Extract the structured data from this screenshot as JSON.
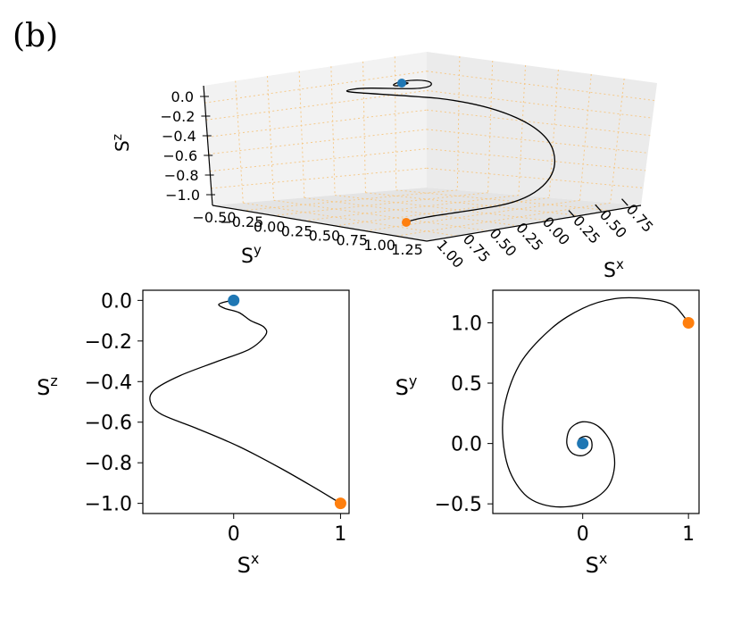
{
  "figure": {
    "panel_label": "(b)"
  },
  "colors": {
    "start": "#1f77b4",
    "end": "#ff7f0e",
    "curve": "#000000",
    "grid": "#f5c98a",
    "pane": "#f0f0f0"
  },
  "chart_data": [
    {
      "type": "line",
      "kind": "3d",
      "xlabel": "S",
      "xlabel_sup": "x",
      "ylabel": "S",
      "ylabel_sup": "y",
      "zlabel": "S",
      "zlabel_sup": "z",
      "x_ticks": [
        "−0.75",
        "−0.50",
        "−0.25",
        "0.00",
        "0.25",
        "0.50",
        "0.75",
        "1.00"
      ],
      "y_ticks": [
        "−0.50",
        "−0.25",
        "0.00",
        "0.25",
        "0.50",
        "0.75",
        "1.00",
        "1.25"
      ],
      "z_ticks": [
        "0.0",
        "−0.2",
        "−0.4",
        "−0.6",
        "−0.8",
        "−1.0"
      ],
      "grid": true,
      "start_point": {
        "x": 0,
        "y": 0,
        "z": 0
      },
      "end_point": {
        "x": 1,
        "y": 1,
        "z": -1
      }
    },
    {
      "type": "line",
      "kind": "xz-projection",
      "xlabel": "S",
      "xlabel_sup": "x",
      "ylabel": "S",
      "ylabel_sup": "z",
      "xlim": [
        -0.85,
        1.08
      ],
      "ylim": [
        -1.05,
        0.05
      ],
      "x_ticks": [
        {
          "v": 0,
          "label": "0"
        },
        {
          "v": 1,
          "label": "1"
        }
      ],
      "y_ticks": [
        {
          "v": 0.0,
          "label": "0.0"
        },
        {
          "v": -0.2,
          "label": "−0.2"
        },
        {
          "v": -0.4,
          "label": "−0.4"
        },
        {
          "v": -0.6,
          "label": "−0.6"
        },
        {
          "v": -0.8,
          "label": "−0.8"
        },
        {
          "v": -1.0,
          "label": "−1.0"
        }
      ],
      "grid": false,
      "start_point": {
        "x": 0,
        "y": 0
      },
      "end_point": {
        "x": 1,
        "y": -1
      },
      "curve": [
        [
          1.0,
          -1.0
        ],
        [
          0.78,
          -0.93
        ],
        [
          0.45,
          -0.83
        ],
        [
          0.05,
          -0.72
        ],
        [
          -0.35,
          -0.63
        ],
        [
          -0.68,
          -0.56
        ],
        [
          -0.78,
          -0.5
        ],
        [
          -0.74,
          -0.44
        ],
        [
          -0.5,
          -0.37
        ],
        [
          -0.15,
          -0.3
        ],
        [
          0.15,
          -0.24
        ],
        [
          0.3,
          -0.17
        ],
        [
          0.28,
          -0.13
        ],
        [
          0.16,
          -0.1
        ],
        [
          0.05,
          -0.06
        ],
        [
          -0.08,
          -0.04
        ],
        [
          -0.14,
          -0.02
        ],
        [
          -0.06,
          -0.005
        ],
        [
          0.04,
          0.0
        ],
        [
          0.02,
          0.003
        ],
        [
          0.0,
          0.0
        ]
      ]
    },
    {
      "type": "line",
      "kind": "xy-projection",
      "xlabel": "S",
      "xlabel_sup": "x",
      "ylabel": "S",
      "ylabel_sup": "y",
      "xlim": [
        -0.85,
        1.1
      ],
      "ylim": [
        -0.58,
        1.27
      ],
      "x_ticks": [
        {
          "v": 0,
          "label": "0"
        },
        {
          "v": 1,
          "label": "1"
        }
      ],
      "y_ticks": [
        {
          "v": 1.0,
          "label": "1.0"
        },
        {
          "v": 0.5,
          "label": "0.5"
        },
        {
          "v": 0.0,
          "label": "0.0"
        },
        {
          "v": -0.5,
          "label": "−0.5"
        }
      ],
      "grid": false,
      "start_point": {
        "x": 0,
        "y": 0
      },
      "end_point": {
        "x": 1,
        "y": 1
      },
      "curve": [
        [
          1.0,
          1.0
        ],
        [
          0.85,
          1.15
        ],
        [
          0.6,
          1.2
        ],
        [
          0.3,
          1.2
        ],
        [
          0.0,
          1.12
        ],
        [
          -0.3,
          0.95
        ],
        [
          -0.6,
          0.65
        ],
        [
          -0.75,
          0.25
        ],
        [
          -0.72,
          -0.15
        ],
        [
          -0.55,
          -0.42
        ],
        [
          -0.3,
          -0.52
        ],
        [
          0.0,
          -0.5
        ],
        [
          0.22,
          -0.38
        ],
        [
          0.3,
          -0.2
        ],
        [
          0.27,
          0.0
        ],
        [
          0.15,
          0.14
        ],
        [
          0.0,
          0.18
        ],
        [
          -0.12,
          0.12
        ],
        [
          -0.15,
          0.0
        ],
        [
          -0.1,
          -0.08
        ],
        [
          0.0,
          -0.1
        ],
        [
          0.08,
          -0.05
        ],
        [
          0.08,
          0.03
        ],
        [
          0.03,
          0.06
        ],
        [
          -0.03,
          0.04
        ],
        [
          -0.04,
          0.0
        ],
        [
          -0.01,
          -0.03
        ],
        [
          0.02,
          -0.02
        ],
        [
          0.02,
          0.01
        ],
        [
          0.0,
          0.0
        ]
      ]
    }
  ]
}
